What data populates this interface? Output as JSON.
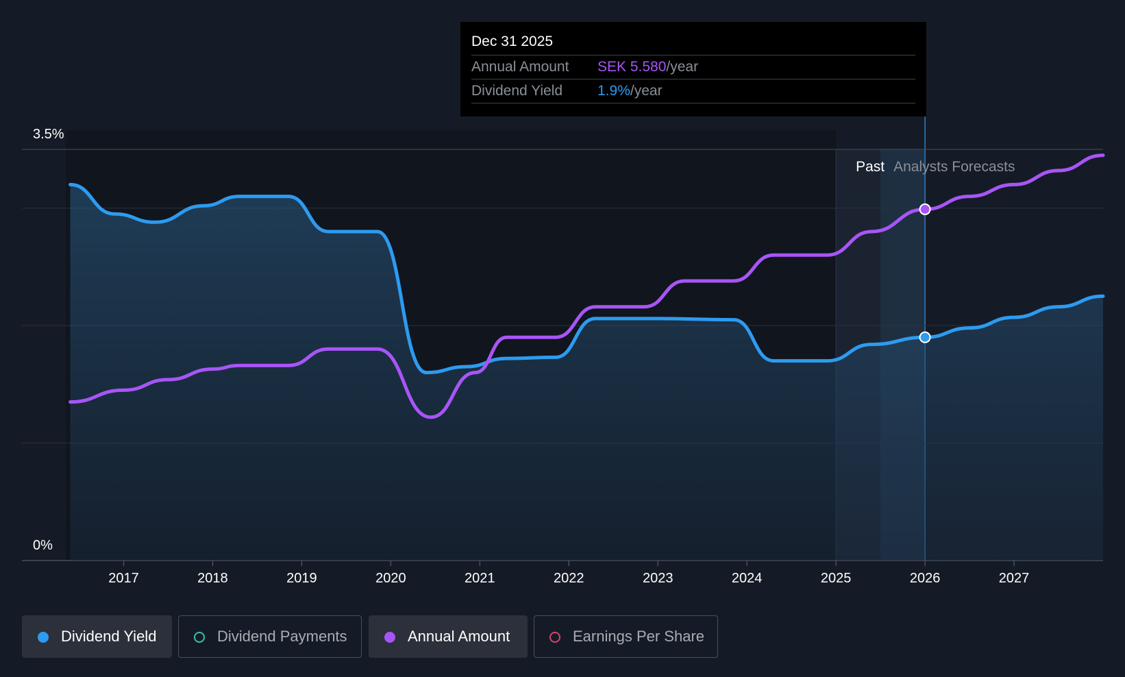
{
  "tooltip": {
    "date": "Dec 31 2025",
    "rows": [
      {
        "label": "Annual Amount",
        "value": "SEK 5.580",
        "suffix": "/year",
        "color": "#a855f7"
      },
      {
        "label": "Dividend Yield",
        "value": "1.9%",
        "suffix": "/year",
        "color": "#2d9bf0"
      }
    ]
  },
  "regions": {
    "past_label": "Past",
    "forecast_label": "Analysts Forecasts"
  },
  "legend": [
    {
      "label": "Dividend Yield",
      "color": "#2d9bf0",
      "active": true,
      "filled": true
    },
    {
      "label": "Dividend Payments",
      "color": "#3fbfae",
      "active": false,
      "filled": false
    },
    {
      "label": "Annual Amount",
      "color": "#a855f7",
      "active": true,
      "filled": true
    },
    {
      "label": "Earnings Per Share",
      "color": "#d2466f",
      "active": false,
      "filled": false
    }
  ],
  "chart_data": {
    "type": "line",
    "x_ticks": [
      "2017",
      "2018",
      "2019",
      "2020",
      "2021",
      "2022",
      "2023",
      "2024",
      "2025",
      "2026",
      "2027"
    ],
    "y_ticks": [
      "3.5%",
      "0%"
    ],
    "xlim": [
      2016.35,
      2028.0
    ],
    "ylim": [
      0,
      3.5
    ],
    "grid": true,
    "past_end": 2026.0,
    "series": [
      {
        "name": "Dividend Yield",
        "color": "#2d9bf0",
        "fill": true,
        "points": [
          [
            2016.4,
            3.2
          ],
          [
            2016.9,
            2.95
          ],
          [
            2017.35,
            2.88
          ],
          [
            2017.9,
            3.02
          ],
          [
            2018.3,
            3.1
          ],
          [
            2018.85,
            3.1
          ],
          [
            2019.3,
            2.8
          ],
          [
            2019.85,
            2.8
          ],
          [
            2020.4,
            1.6
          ],
          [
            2020.85,
            1.65
          ],
          [
            2021.3,
            1.72
          ],
          [
            2021.85,
            1.73
          ],
          [
            2022.3,
            2.06
          ],
          [
            2023.0,
            2.06
          ],
          [
            2023.85,
            2.05
          ],
          [
            2024.3,
            1.7
          ],
          [
            2024.9,
            1.7
          ],
          [
            2025.4,
            1.84
          ],
          [
            2026.0,
            1.9
          ],
          [
            2026.5,
            1.98
          ],
          [
            2027.0,
            2.07
          ],
          [
            2027.5,
            2.16
          ],
          [
            2028.0,
            2.25
          ]
        ]
      },
      {
        "name": "Annual Amount",
        "color": "#a855f7",
        "fill": false,
        "points": [
          [
            2016.4,
            1.35
          ],
          [
            2017.0,
            1.45
          ],
          [
            2017.5,
            1.54
          ],
          [
            2018.0,
            1.63
          ],
          [
            2018.3,
            1.66
          ],
          [
            2018.85,
            1.66
          ],
          [
            2019.3,
            1.8
          ],
          [
            2019.85,
            1.8
          ],
          [
            2020.45,
            1.22
          ],
          [
            2020.95,
            1.6
          ],
          [
            2021.3,
            1.9
          ],
          [
            2021.85,
            1.9
          ],
          [
            2022.3,
            2.16
          ],
          [
            2022.85,
            2.16
          ],
          [
            2023.3,
            2.38
          ],
          [
            2023.85,
            2.38
          ],
          [
            2024.3,
            2.6
          ],
          [
            2024.9,
            2.6
          ],
          [
            2025.4,
            2.8
          ],
          [
            2026.0,
            2.99
          ],
          [
            2026.5,
            3.1
          ],
          [
            2027.0,
            3.2
          ],
          [
            2027.5,
            3.32
          ],
          [
            2028.0,
            3.45
          ]
        ]
      }
    ],
    "highlight_x": 2026.0,
    "highlight_values": [
      1.9,
      2.99
    ]
  }
}
